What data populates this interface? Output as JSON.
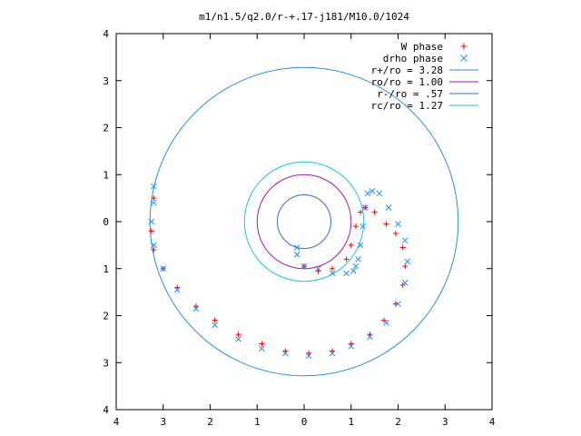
{
  "chart_data": {
    "type": "scatter",
    "title": "m1/n1.5/q2.0/r-+.17-j181/M10.0/1024",
    "xlim": [
      -4,
      4
    ],
    "ylim": [
      -4,
      4
    ],
    "x_ticks": [
      -4,
      -3,
      -2,
      -1,
      0,
      1,
      2,
      3,
      4
    ],
    "y_ticks": [
      -4,
      -3,
      -2,
      -1,
      0,
      1,
      2,
      3,
      4
    ],
    "x_tick_labels": [
      "4",
      "3",
      "2",
      "1",
      "0",
      "1",
      "2",
      "3",
      "4"
    ],
    "y_tick_labels": [
      "4",
      "3",
      "2",
      "1",
      "0",
      "1",
      "2",
      "3",
      "4"
    ],
    "grid": false,
    "legend_position": "top-right",
    "circles": [
      {
        "name": "r+/ro = 3.28",
        "radius": 3.28,
        "color": "#2f8fd0"
      },
      {
        "name": "ro/ro = 1.00",
        "radius": 1.0,
        "color": "#a020a0"
      },
      {
        "name": "r-/ro = .57",
        "radius": 0.57,
        "color": "#2f6fd0"
      },
      {
        "name": "rc/ro = 1.27",
        "radius": 1.27,
        "color": "#20c8d0"
      }
    ],
    "series": [
      {
        "name": "W phase",
        "marker": "+",
        "color": "#ff0000",
        "x": [
          -3.2,
          -3.25,
          -3.2,
          -3.0,
          -2.7,
          -2.3,
          -1.9,
          -1.4,
          -0.9,
          -0.4,
          0.1,
          0.6,
          1.0,
          1.4,
          1.7,
          1.95,
          2.1,
          2.15,
          2.1,
          1.95,
          1.75,
          1.5,
          1.3,
          1.2,
          1.1,
          1.0,
          0.9,
          0.6,
          0.3,
          0.0
        ],
        "y": [
          0.5,
          -0.2,
          -0.6,
          -1.0,
          -1.4,
          -1.8,
          -2.1,
          -2.4,
          -2.6,
          -2.75,
          -2.8,
          -2.75,
          -2.6,
          -2.4,
          -2.1,
          -1.75,
          -1.35,
          -0.95,
          -0.55,
          -0.25,
          -0.05,
          0.2,
          0.3,
          0.2,
          -0.1,
          -0.5,
          -0.8,
          -1.0,
          -1.05,
          -0.95
        ]
      },
      {
        "name": "drho phase",
        "marker": "x",
        "color": "#1e90ff",
        "x": [
          -3.2,
          -3.2,
          -3.25,
          -3.2,
          -3.0,
          -2.7,
          -2.3,
          -1.9,
          -1.4,
          -0.9,
          -0.4,
          0.1,
          0.6,
          1.0,
          1.4,
          1.75,
          2.0,
          2.15,
          2.2,
          2.15,
          2.0,
          1.8,
          1.6,
          1.45,
          1.35,
          1.3,
          1.25,
          1.2,
          1.15,
          1.1,
          1.05,
          0.9,
          0.6,
          0.3,
          0.0,
          -0.15,
          -0.15
        ],
        "y": [
          0.75,
          0.4,
          0.0,
          -0.5,
          -1.0,
          -1.45,
          -1.85,
          -2.2,
          -2.5,
          -2.7,
          -2.8,
          -2.85,
          -2.8,
          -2.65,
          -2.45,
          -2.15,
          -1.75,
          -1.3,
          -0.85,
          -0.4,
          -0.05,
          0.3,
          0.6,
          0.65,
          0.6,
          0.3,
          -0.1,
          -0.5,
          -0.8,
          -0.95,
          -1.05,
          -1.1,
          -1.1,
          -1.0,
          -0.95,
          -0.7,
          -0.55
        ]
      }
    ]
  }
}
